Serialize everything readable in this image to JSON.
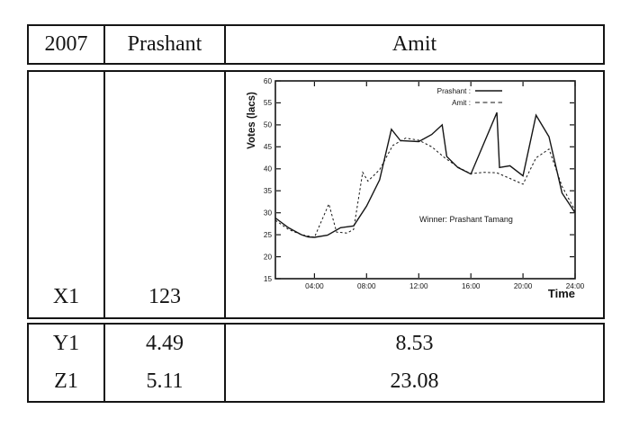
{
  "table": {
    "header": {
      "col1": "2007",
      "col2": "Prashant",
      "col3": "Amit"
    },
    "chart_row": {
      "col1": "X1",
      "col2": "123"
    },
    "rows": [
      {
        "col1": "Y1",
        "col2": "4.49",
        "col3": "8.53"
      },
      {
        "col1": "Z1",
        "col2": "5.11",
        "col3": "23.08"
      }
    ]
  },
  "chart_data": {
    "type": "line",
    "title": "",
    "xlabel": "Time",
    "ylabel": "Votes (lacs)",
    "xlim": [
      1,
      24
    ],
    "ylim": [
      15,
      60
    ],
    "grid": false,
    "legend_position": "top-right-inside",
    "annotation": "Winner: Prashant Tamang",
    "x_ticks": [
      {
        "value": 4,
        "label": "04:00"
      },
      {
        "value": 8,
        "label": "08:00"
      },
      {
        "value": 12,
        "label": "12:00"
      },
      {
        "value": 16,
        "label": "16:00"
      },
      {
        "value": 20,
        "label": "20:00"
      },
      {
        "value": 24,
        "label": "24:00"
      }
    ],
    "y_ticks": [
      15,
      20,
      25,
      30,
      35,
      40,
      45,
      50,
      55,
      60
    ],
    "series": [
      {
        "name": "Prashant",
        "legend_label": "Prashant :",
        "style": "solid",
        "points": [
          [
            1,
            28.8
          ],
          [
            2,
            26.6
          ],
          [
            3,
            25.0
          ],
          [
            3.5,
            24.5
          ],
          [
            4,
            24.4
          ],
          [
            5,
            24.9
          ],
          [
            6,
            26.6
          ],
          [
            7,
            27.0
          ],
          [
            8,
            31.5
          ],
          [
            9,
            37.5
          ],
          [
            9.9,
            49.0
          ],
          [
            10.6,
            46.4
          ],
          [
            12,
            46.2
          ],
          [
            13,
            47.8
          ],
          [
            13.8,
            50.0
          ],
          [
            14.15,
            42.8
          ],
          [
            15,
            40.3
          ],
          [
            16,
            38.8
          ],
          [
            18,
            52.8
          ],
          [
            18.2,
            40.3
          ],
          [
            19,
            40.7
          ],
          [
            20,
            38.4
          ],
          [
            21,
            52.2
          ],
          [
            22,
            47.3
          ],
          [
            23,
            34.5
          ],
          [
            24,
            30.0
          ]
        ]
      },
      {
        "name": "Amit",
        "legend_label": "Amit :",
        "style": "dashed",
        "points": [
          [
            1,
            28.3
          ],
          [
            2,
            26.2
          ],
          [
            3,
            25.0
          ],
          [
            4,
            24.4
          ],
          [
            5.1,
            32.0
          ],
          [
            5.7,
            25.6
          ],
          [
            6.5,
            25.4
          ],
          [
            7,
            26.2
          ],
          [
            7.7,
            39.2
          ],
          [
            8.1,
            37.2
          ],
          [
            9,
            39.8
          ],
          [
            10,
            45.3
          ],
          [
            11,
            47.0
          ],
          [
            12,
            46.5
          ],
          [
            13,
            45.0
          ],
          [
            14,
            42.5
          ],
          [
            15,
            40.4
          ],
          [
            16,
            38.9
          ],
          [
            17,
            39.2
          ],
          [
            18,
            39.1
          ],
          [
            19,
            37.8
          ],
          [
            20,
            36.5
          ],
          [
            21,
            42.5
          ],
          [
            22,
            44.5
          ],
          [
            23,
            36.0
          ],
          [
            24,
            30.5
          ]
        ]
      }
    ]
  }
}
